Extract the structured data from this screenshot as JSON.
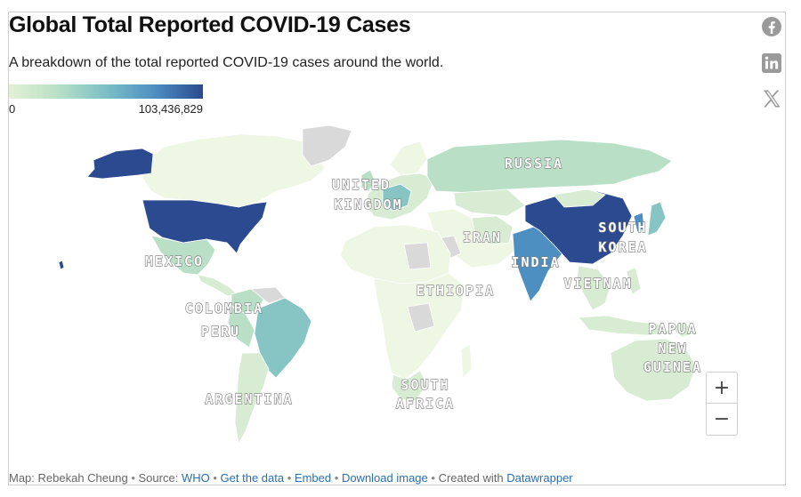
{
  "header": {
    "title": "Global Total Reported COVID-19 Cases",
    "subtitle": "A breakdown of the total reported COVID-19 cases around the world."
  },
  "legend": {
    "min_label": "0",
    "max_label": "103,436,829",
    "colors": [
      "#e3f1d6",
      "#b9e0c6",
      "#7cbfc6",
      "#4e8fc2",
      "#2b4a8f"
    ]
  },
  "colors": {
    "no_data": "#d9d9d9",
    "very_low": "#eef6e4",
    "low": "#d7ecd3",
    "medium_low": "#b9e0c6",
    "medium": "#86c5c4",
    "high": "#4e8fc2",
    "highest": "#2b4a8f"
  },
  "share_icons": [
    "facebook-icon",
    "linkedin-icon",
    "x-icon"
  ],
  "map_labels": {
    "russia": "RUSSIA",
    "united_kingdom_1": "UNITED",
    "united_kingdom_2": "KINGDOM",
    "iran": "IRAN",
    "india": "INDIA",
    "south_korea_1": "SOUTH",
    "south_korea_2": "KOREA",
    "mexico": "MEXICO",
    "ethiopia": "ETHIOPIA",
    "vietnam": "VIETNAM",
    "colombia": "COLOMBIA",
    "peru": "PERU",
    "papua_1": "PAPUA",
    "papua_2": "NEW",
    "papua_3": "GUINEA",
    "south_africa_1": "SOUTH",
    "south_africa_2": "AFRICA",
    "argentina": "ARGENTINA"
  },
  "zoom": {
    "in_label": "+",
    "out_label": "−"
  },
  "footer": {
    "credit": "Map: Rebekah Cheung",
    "source_prefix": "Source:",
    "source_link": "WHO",
    "get_data": "Get the data",
    "embed": "Embed",
    "download": "Download image",
    "created_prefix": "Created with",
    "datawrapper": "Datawrapper",
    "separator": "•"
  }
}
